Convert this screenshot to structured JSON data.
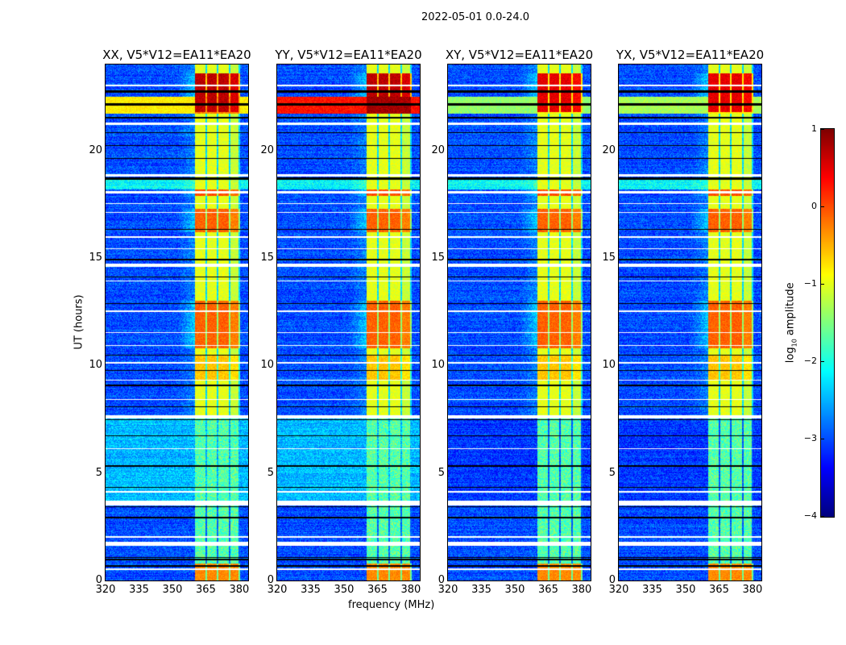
{
  "suptitle": "2022-05-01 0.0-24.0",
  "colors": {
    "flag": "#ffffff",
    "gap": "#000000"
  },
  "chart_data": {
    "type": "heatmap",
    "colormap": "jet",
    "xlabel": "frequency (MHz)",
    "ylabel": "UT (hours)",
    "xlim": [
      320,
      384
    ],
    "ylim": [
      0,
      24
    ],
    "xticks": [
      "320",
      "335",
      "350",
      "365",
      "380"
    ],
    "xtick_values": [
      320,
      335,
      350,
      365,
      380
    ],
    "yticks": [
      "0",
      "5",
      "10",
      "15",
      "20"
    ],
    "ytick_values": [
      0,
      5,
      10,
      15,
      20
    ],
    "colorbar": {
      "label": "log10 amplitude",
      "label_main": "log",
      "label_sub": "10",
      "label_rest": " amplitude",
      "range": [
        -4,
        1
      ],
      "ticks": [
        "1",
        "0",
        "−1",
        "−2",
        "−3",
        "−4"
      ],
      "tick_values": [
        1,
        0,
        -1,
        -2,
        -3,
        -4
      ]
    },
    "panels": [
      {
        "title": "XX, V5*V12=EA11*EA20",
        "pol": "parallel",
        "band_level": -0.8
      },
      {
        "title": "YY, V5*V12=EA11*EA20",
        "pol": "parallel",
        "band_level": 0.3
      },
      {
        "title": "XY, V5*V12=EA11*EA20",
        "pol": "cross",
        "band_level": -1.4
      },
      {
        "title": "YX, V5*V12=EA11*EA20",
        "pol": "cross",
        "band_level": -1.3
      }
    ],
    "rfi_channels_mhz": [
      [
        360.3,
        364.8
      ],
      [
        365.5,
        370.0
      ],
      [
        370.8,
        375.3
      ],
      [
        376.0,
        379.7
      ]
    ],
    "rfi_levels": [
      {
        "t": [
          0,
          0.8
        ],
        "level": -0.3
      },
      {
        "t": [
          0.8,
          7.6
        ],
        "level": -1.7
      },
      {
        "t": [
          7.6,
          24
        ],
        "level": -1.0
      },
      {
        "t": [
          9.3,
          10.5
        ],
        "level": -0.6
      },
      {
        "t": [
          10.8,
          13.0
        ],
        "level": -0.1
      },
      {
        "t": [
          16.2,
          17.3
        ],
        "level": -0.1
      },
      {
        "t": [
          17.9,
          18.2
        ],
        "level": 0.0
      },
      {
        "t": [
          21.8,
          23.6
        ],
        "level": 0.7
      }
    ],
    "wideband_rfi_hours": [
      21.7,
      22.5
    ],
    "flagged_hours": [
      [
        1.6,
        1.8
      ],
      [
        3.5,
        3.7
      ],
      [
        0.5,
        0.55
      ],
      [
        2.0,
        2.05
      ],
      [
        4.1,
        4.15
      ],
      [
        6.1,
        6.15
      ],
      [
        7.55,
        7.7
      ],
      [
        8.4,
        8.45
      ],
      [
        9.3,
        9.35
      ],
      [
        10.1,
        10.15
      ],
      [
        10.9,
        10.95
      ],
      [
        11.5,
        11.55
      ],
      [
        12.5,
        12.55
      ],
      [
        13.9,
        13.95
      ],
      [
        14.6,
        14.75
      ],
      [
        15.4,
        15.45
      ],
      [
        15.95,
        16.0
      ],
      [
        17.1,
        17.15
      ],
      [
        17.5,
        17.55
      ],
      [
        18.0,
        18.1
      ],
      [
        18.8,
        18.9
      ],
      [
        21.2,
        21.3
      ],
      [
        23.0,
        23.05
      ]
    ],
    "gap_hours": [
      [
        0.65,
        0.7
      ],
      [
        0.95,
        1.0
      ],
      [
        1.05,
        1.1
      ],
      [
        2.9,
        2.95
      ],
      [
        3.4,
        3.45
      ],
      [
        4.3,
        4.35
      ],
      [
        5.3,
        5.35
      ],
      [
        6.7,
        6.75
      ],
      [
        7.45,
        7.5
      ],
      [
        8.05,
        8.1
      ],
      [
        9.05,
        9.1
      ],
      [
        9.75,
        9.8
      ],
      [
        10.45,
        10.5
      ],
      [
        12.85,
        12.9
      ],
      [
        14.1,
        14.15
      ],
      [
        14.9,
        14.95
      ],
      [
        16.3,
        16.35
      ],
      [
        18.65,
        18.75
      ],
      [
        19.6,
        19.65
      ],
      [
        20.2,
        20.25
      ],
      [
        20.8,
        20.85
      ],
      [
        21.5,
        21.55
      ],
      [
        22.1,
        22.2
      ],
      [
        22.7,
        22.8
      ]
    ]
  }
}
